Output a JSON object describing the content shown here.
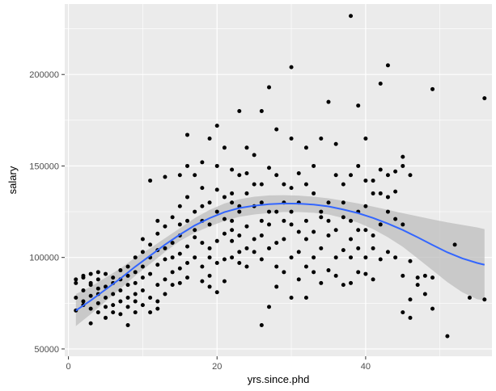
{
  "chart_data": {
    "type": "scatter",
    "title": "",
    "xlabel": "yrs.since.phd",
    "ylabel": "salary",
    "xlim": [
      -0.5,
      57
    ],
    "ylim": [
      46000,
      238500
    ],
    "x_ticks": [
      0,
      20,
      40
    ],
    "x_tick_labels": [
      "0",
      "20",
      "40"
    ],
    "y_ticks": [
      50000,
      100000,
      150000,
      200000
    ],
    "y_tick_labels": [
      "50000",
      "100000",
      "150000",
      "200000"
    ],
    "grid": true,
    "legend": "none",
    "background_color": "#ebebeb",
    "grid_color": "#ffffff",
    "point_color": "#000000",
    "smooth_color": "#3366ff",
    "ribbon_color": "#bdbdbd",
    "points": [
      [
        1,
        88000
      ],
      [
        1,
        78000
      ],
      [
        1,
        71000
      ],
      [
        1,
        86000
      ],
      [
        2,
        89000
      ],
      [
        2,
        76000
      ],
      [
        2,
        82000
      ],
      [
        2,
        74000
      ],
      [
        2,
        90000
      ],
      [
        3,
        64000
      ],
      [
        3,
        79000
      ],
      [
        3,
        85000
      ],
      [
        3,
        91000
      ],
      [
        3,
        72000
      ],
      [
        3,
        86000
      ],
      [
        4,
        75000
      ],
      [
        4,
        83000
      ],
      [
        4,
        88000
      ],
      [
        4,
        92000
      ],
      [
        4,
        70000
      ],
      [
        4,
        80000
      ],
      [
        5,
        67000
      ],
      [
        5,
        78000
      ],
      [
        5,
        84000
      ],
      [
        5,
        91000
      ],
      [
        5,
        73000
      ],
      [
        6,
        80000
      ],
      [
        6,
        86000
      ],
      [
        6,
        74000
      ],
      [
        6,
        89000
      ],
      [
        6,
        70000
      ],
      [
        7,
        82000
      ],
      [
        7,
        88000
      ],
      [
        7,
        76000
      ],
      [
        7,
        93000
      ],
      [
        7,
        69000
      ],
      [
        8,
        63000
      ],
      [
        8,
        78000
      ],
      [
        8,
        85000
      ],
      [
        8,
        90000
      ],
      [
        8,
        73000
      ],
      [
        8,
        95000
      ],
      [
        9,
        80000
      ],
      [
        9,
        92000
      ],
      [
        9,
        100000
      ],
      [
        9,
        70000
      ],
      [
        9,
        86000
      ],
      [
        9,
        76000
      ],
      [
        10,
        82000
      ],
      [
        10,
        95000
      ],
      [
        10,
        103000
      ],
      [
        10,
        110000
      ],
      [
        10,
        74000
      ],
      [
        10,
        89000
      ],
      [
        11,
        78000
      ],
      [
        11,
        100000
      ],
      [
        11,
        107000
      ],
      [
        11,
        142000
      ],
      [
        11,
        91000
      ],
      [
        11,
        70000
      ],
      [
        12,
        76000
      ],
      [
        12,
        96000
      ],
      [
        12,
        113000
      ],
      [
        12,
        120000
      ],
      [
        12,
        104000
      ],
      [
        12,
        85000
      ],
      [
        12,
        72000
      ],
      [
        13,
        88000
      ],
      [
        13,
        105000
      ],
      [
        13,
        117000
      ],
      [
        13,
        144000
      ],
      [
        13,
        99000
      ],
      [
        13,
        80000
      ],
      [
        14,
        100000
      ],
      [
        14,
        108000
      ],
      [
        14,
        122000
      ],
      [
        14,
        92000
      ],
      [
        14,
        85000
      ],
      [
        15,
        94000
      ],
      [
        15,
        118000
      ],
      [
        15,
        128000
      ],
      [
        15,
        145000
      ],
      [
        15,
        112000
      ],
      [
        15,
        102000
      ],
      [
        15,
        86000
      ],
      [
        16,
        120000
      ],
      [
        16,
        133000
      ],
      [
        16,
        150000
      ],
      [
        16,
        167000
      ],
      [
        16,
        106000
      ],
      [
        16,
        89000
      ],
      [
        16,
        97000
      ],
      [
        17,
        115000
      ],
      [
        17,
        125000
      ],
      [
        17,
        145000
      ],
      [
        17,
        100000
      ],
      [
        17,
        111000
      ],
      [
        18,
        108000
      ],
      [
        18,
        120000
      ],
      [
        18,
        138000
      ],
      [
        18,
        152000
      ],
      [
        18,
        95000
      ],
      [
        18,
        87000
      ],
      [
        18,
        128000
      ],
      [
        19,
        105000
      ],
      [
        19,
        118000
      ],
      [
        19,
        130000
      ],
      [
        19,
        165000
      ],
      [
        19,
        90000
      ],
      [
        19,
        84000
      ],
      [
        19,
        100000
      ],
      [
        20,
        109000
      ],
      [
        20,
        125000
      ],
      [
        20,
        137000
      ],
      [
        20,
        172000
      ],
      [
        20,
        97000
      ],
      [
        20,
        81000
      ],
      [
        20,
        150000
      ],
      [
        21,
        113000
      ],
      [
        21,
        133000
      ],
      [
        21,
        160000
      ],
      [
        21,
        99000
      ],
      [
        21,
        87000
      ],
      [
        21,
        121000
      ],
      [
        22,
        109000
      ],
      [
        22,
        120000
      ],
      [
        22,
        130000
      ],
      [
        22,
        148000
      ],
      [
        22,
        100000
      ],
      [
        22,
        115000
      ],
      [
        22,
        135000
      ],
      [
        23,
        103000
      ],
      [
        23,
        125000
      ],
      [
        23,
        180000
      ],
      [
        23,
        145000
      ],
      [
        23,
        97000
      ],
      [
        23,
        112000
      ],
      [
        23,
        128000
      ],
      [
        24,
        105000
      ],
      [
        24,
        117000
      ],
      [
        24,
        135000
      ],
      [
        24,
        160000
      ],
      [
        24,
        95000
      ],
      [
        24,
        146000
      ],
      [
        25,
        110000
      ],
      [
        25,
        128000
      ],
      [
        25,
        156000
      ],
      [
        25,
        103000
      ],
      [
        25,
        140000
      ],
      [
        26,
        63000
      ],
      [
        26,
        99000
      ],
      [
        26,
        120000
      ],
      [
        26,
        140000
      ],
      [
        26,
        180000
      ],
      [
        26,
        112000
      ],
      [
        26,
        130000
      ],
      [
        27,
        73000
      ],
      [
        27,
        105000
      ],
      [
        27,
        118000
      ],
      [
        27,
        193000
      ],
      [
        27,
        149000
      ],
      [
        27,
        125000
      ],
      [
        28,
        84000
      ],
      [
        28,
        108000
      ],
      [
        28,
        125000
      ],
      [
        28,
        170000
      ],
      [
        28,
        95000
      ],
      [
        28,
        145000
      ],
      [
        29,
        92000
      ],
      [
        29,
        110000
      ],
      [
        29,
        120000
      ],
      [
        29,
        140000
      ],
      [
        29,
        130000
      ],
      [
        30,
        78000
      ],
      [
        30,
        100000
      ],
      [
        30,
        125000
      ],
      [
        30,
        204000
      ],
      [
        30,
        165000
      ],
      [
        30,
        118000
      ],
      [
        30,
        138000
      ],
      [
        31,
        88000
      ],
      [
        31,
        103000
      ],
      [
        31,
        130000
      ],
      [
        31,
        146000
      ],
      [
        31,
        114000
      ],
      [
        32,
        78000
      ],
      [
        32,
        95000
      ],
      [
        32,
        120000
      ],
      [
        32,
        140000
      ],
      [
        32,
        160000
      ],
      [
        32,
        110000
      ],
      [
        33,
        92000
      ],
      [
        33,
        100000
      ],
      [
        33,
        114000
      ],
      [
        33,
        135000
      ],
      [
        33,
        150000
      ],
      [
        34,
        86000
      ],
      [
        34,
        105000
      ],
      [
        34,
        125000
      ],
      [
        34,
        165000
      ],
      [
        34,
        122000
      ],
      [
        35,
        93000
      ],
      [
        35,
        112000
      ],
      [
        35,
        130000
      ],
      [
        35,
        185000
      ],
      [
        35,
        120000
      ],
      [
        36,
        90000
      ],
      [
        36,
        100000
      ],
      [
        36,
        115000
      ],
      [
        36,
        145000
      ],
      [
        36,
        162000
      ],
      [
        37,
        85000
      ],
      [
        37,
        104000
      ],
      [
        37,
        122000
      ],
      [
        37,
        140000
      ],
      [
        37,
        130000
      ],
      [
        38,
        86000
      ],
      [
        38,
        100000
      ],
      [
        38,
        120000
      ],
      [
        38,
        232000
      ],
      [
        38,
        145000
      ],
      [
        38,
        110000
      ],
      [
        39,
        92000
      ],
      [
        39,
        105000
      ],
      [
        39,
        125000
      ],
      [
        39,
        150000
      ],
      [
        39,
        183000
      ],
      [
        39,
        115000
      ],
      [
        40,
        91000
      ],
      [
        40,
        100000
      ],
      [
        40,
        115000
      ],
      [
        40,
        142000
      ],
      [
        40,
        165000
      ],
      [
        40,
        128000
      ],
      [
        41,
        88000
      ],
      [
        41,
        105000
      ],
      [
        41,
        135000
      ],
      [
        41,
        142000
      ],
      [
        41,
        112000
      ],
      [
        42,
        99000
      ],
      [
        42,
        118000
      ],
      [
        42,
        148000
      ],
      [
        42,
        195000
      ],
      [
        42,
        135000
      ],
      [
        43,
        103000
      ],
      [
        43,
        125000
      ],
      [
        43,
        205000
      ],
      [
        43,
        145000
      ],
      [
        43,
        133000
      ],
      [
        44,
        100000
      ],
      [
        44,
        121000
      ],
      [
        44,
        136000
      ],
      [
        44,
        147000
      ],
      [
        45,
        70000
      ],
      [
        45,
        90000
      ],
      [
        45,
        118000
      ],
      [
        45,
        150000
      ],
      [
        45,
        155000
      ],
      [
        46,
        67000
      ],
      [
        46,
        77000
      ],
      [
        46,
        98000
      ],
      [
        46,
        145000
      ],
      [
        47,
        89000
      ],
      [
        47,
        85000
      ],
      [
        48,
        90000
      ],
      [
        48,
        80000
      ],
      [
        49,
        192000
      ],
      [
        49,
        72000
      ],
      [
        49,
        89000
      ],
      [
        51,
        57000
      ],
      [
        52,
        107000
      ],
      [
        54,
        78000
      ],
      [
        56,
        187000
      ],
      [
        56,
        77000
      ]
    ],
    "smooth": [
      [
        1,
        71000
      ],
      [
        3,
        76500
      ],
      [
        5,
        82500
      ],
      [
        7,
        88500
      ],
      [
        9,
        95000
      ],
      [
        11,
        101000
      ],
      [
        13,
        107000
      ],
      [
        15,
        112500
      ],
      [
        17,
        117500
      ],
      [
        19,
        121500
      ],
      [
        21,
        124800
      ],
      [
        23,
        127000
      ],
      [
        25,
        128300
      ],
      [
        27,
        129100
      ],
      [
        29,
        129500
      ],
      [
        31,
        129400
      ],
      [
        33,
        128900
      ],
      [
        35,
        127900
      ],
      [
        37,
        126200
      ],
      [
        39,
        124200
      ],
      [
        41,
        121600
      ],
      [
        43,
        118500
      ],
      [
        45,
        115000
      ],
      [
        47,
        111000
      ],
      [
        49,
        106800
      ],
      [
        51,
        102800
      ],
      [
        53,
        99500
      ],
      [
        55,
        97000
      ],
      [
        56,
        96000
      ]
    ],
    "ribbon_upper": [
      [
        1,
        80000
      ],
      [
        3,
        84000
      ],
      [
        5,
        89000
      ],
      [
        7,
        94000
      ],
      [
        9,
        100000
      ],
      [
        11,
        105000
      ],
      [
        13,
        110500
      ],
      [
        15,
        116000
      ],
      [
        17,
        121500
      ],
      [
        19,
        126000
      ],
      [
        21,
        129500
      ],
      [
        23,
        131800
      ],
      [
        25,
        133200
      ],
      [
        27,
        133900
      ],
      [
        29,
        134000
      ],
      [
        31,
        133800
      ],
      [
        33,
        133200
      ],
      [
        35,
        132300
      ],
      [
        37,
        131000
      ],
      [
        39,
        129500
      ],
      [
        41,
        127800
      ],
      [
        43,
        126000
      ],
      [
        45,
        124200
      ],
      [
        47,
        122500
      ],
      [
        49,
        120800
      ],
      [
        51,
        119200
      ],
      [
        53,
        117800
      ],
      [
        55,
        116400
      ],
      [
        56,
        115500
      ]
    ],
    "ribbon_lower": [
      [
        1,
        62500
      ],
      [
        3,
        69000
      ],
      [
        5,
        76000
      ],
      [
        7,
        83000
      ],
      [
        9,
        90000
      ],
      [
        11,
        96500
      ],
      [
        13,
        103000
      ],
      [
        15,
        109000
      ],
      [
        17,
        113500
      ],
      [
        19,
        117000
      ],
      [
        21,
        120000
      ],
      [
        23,
        122200
      ],
      [
        25,
        123500
      ],
      [
        27,
        124300
      ],
      [
        29,
        124800
      ],
      [
        31,
        124800
      ],
      [
        33,
        124400
      ],
      [
        35,
        123500
      ],
      [
        37,
        121500
      ],
      [
        39,
        119000
      ],
      [
        41,
        115500
      ],
      [
        43,
        111000
      ],
      [
        45,
        105800
      ],
      [
        47,
        99500
      ],
      [
        49,
        93000
      ],
      [
        51,
        86500
      ],
      [
        53,
        81000
      ],
      [
        55,
        77200
      ],
      [
        56,
        76500
      ]
    ]
  }
}
